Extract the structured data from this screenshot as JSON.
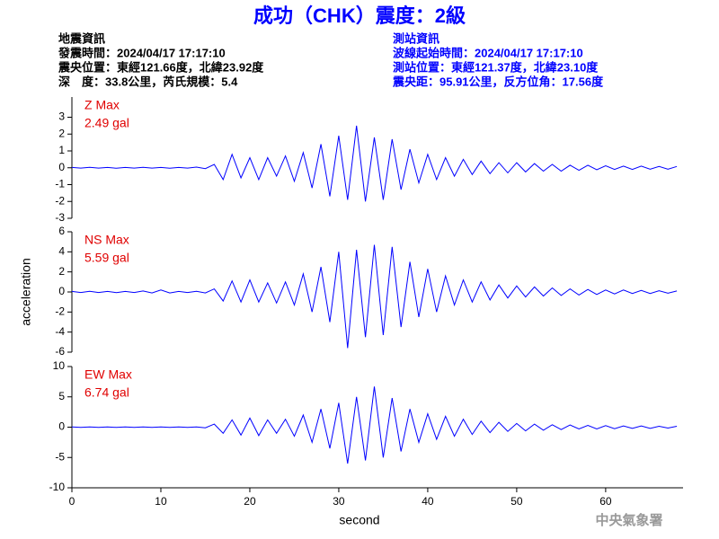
{
  "title": "成功（CHK）震度：2級",
  "left_info": [
    "地震資訊",
    "發震時間：2024/04/17 17:17:10",
    "震央位置：東經121.66度，北緯23.92度",
    "深　度：33.8公里，芮氏規模：5.4"
  ],
  "right_info": [
    "測站資訊",
    "波線起始時間：2024/04/17 17:17:10",
    "測站位置：東經121.37度，北緯23.10度",
    "震央距：95.91公里，反方位角：17.56度"
  ],
  "y_label": "acceleration",
  "footer": "中央氣象署",
  "chart_data": [
    {
      "type": "line",
      "label": "Z Max",
      "max_label": "2.49 gal",
      "color": "#0000ff",
      "x": [
        0,
        1,
        2,
        3,
        4,
        5,
        6,
        7,
        8,
        9,
        10,
        11,
        12,
        13,
        14,
        15,
        16,
        17,
        18,
        19,
        20,
        21,
        22,
        23,
        24,
        25,
        26,
        27,
        28,
        29,
        30,
        31,
        32,
        33,
        34,
        35,
        36,
        37,
        38,
        39,
        40,
        41,
        42,
        43,
        44,
        45,
        46,
        47,
        48,
        49,
        50,
        51,
        52,
        53,
        54,
        55,
        56,
        57,
        58,
        59,
        60,
        61,
        62,
        63,
        64,
        65,
        66,
        67,
        68
      ],
      "values": [
        0.02,
        -0.02,
        0.03,
        -0.02,
        0.02,
        -0.03,
        0.02,
        -0.02,
        0.03,
        -0.02,
        0.02,
        -0.03,
        0.02,
        -0.02,
        0.04,
        -0.05,
        0.2,
        -0.7,
        0.8,
        -0.6,
        0.6,
        -0.7,
        0.6,
        -0.5,
        0.7,
        -0.8,
        0.9,
        -1.2,
        1.4,
        -1.7,
        1.9,
        -1.9,
        2.5,
        -2.0,
        1.8,
        -1.9,
        1.7,
        -1.3,
        1.1,
        -0.9,
        0.8,
        -0.7,
        0.6,
        -0.5,
        0.5,
        -0.4,
        0.4,
        -0.35,
        0.3,
        -0.3,
        0.3,
        -0.25,
        0.25,
        -0.2,
        0.2,
        -0.2,
        0.15,
        -0.15,
        0.15,
        -0.12,
        0.12,
        -0.1,
        0.1,
        -0.1,
        0.1,
        -0.08,
        0.08,
        -0.08,
        0.08
      ],
      "xlim": [
        0,
        68.7
      ],
      "ylim": [
        -3,
        4.2
      ],
      "yticks": [
        -3,
        -2,
        -1,
        0,
        1,
        2,
        3
      ]
    },
    {
      "type": "line",
      "label": "NS Max",
      "max_label": "5.59 gal",
      "color": "#0000ff",
      "x": [
        0,
        1,
        2,
        3,
        4,
        5,
        6,
        7,
        8,
        9,
        10,
        11,
        12,
        13,
        14,
        15,
        16,
        17,
        18,
        19,
        20,
        21,
        22,
        23,
        24,
        25,
        26,
        27,
        28,
        29,
        30,
        31,
        32,
        33,
        34,
        35,
        36,
        37,
        38,
        39,
        40,
        41,
        42,
        43,
        44,
        45,
        46,
        47,
        48,
        49,
        50,
        51,
        52,
        53,
        54,
        55,
        56,
        57,
        58,
        59,
        60,
        61,
        62,
        63,
        64,
        65,
        66,
        67,
        68
      ],
      "values": [
        0.05,
        -0.05,
        0.06,
        -0.05,
        0.05,
        -0.06,
        0.05,
        -0.05,
        0.1,
        -0.1,
        0.2,
        -0.1,
        0.05,
        -0.05,
        0.06,
        -0.1,
        0.3,
        -0.9,
        1.1,
        -1.0,
        1.2,
        -1.0,
        0.9,
        -1.1,
        1.0,
        -1.3,
        1.8,
        -2.0,
        2.5,
        -3.0,
        4.0,
        -5.6,
        4.2,
        -4.5,
        4.7,
        -4.3,
        4.5,
        -3.5,
        3.0,
        -2.5,
        2.3,
        -2.0,
        1.6,
        -1.3,
        1.2,
        -1.0,
        1.0,
        -0.8,
        0.7,
        -0.6,
        0.6,
        -0.5,
        0.5,
        -0.4,
        0.4,
        -0.35,
        0.3,
        -0.3,
        0.25,
        -0.25,
        0.2,
        -0.2,
        0.2,
        -0.15,
        0.15,
        -0.15,
        0.12,
        -0.12,
        0.1
      ],
      "xlim": [
        0,
        68.7
      ],
      "ylim": [
        -6,
        6
      ],
      "yticks": [
        -6,
        -4,
        -2,
        0,
        2,
        4,
        6
      ]
    },
    {
      "type": "line",
      "label": "EW Max",
      "max_label": "6.74 gal",
      "color": "#0000ff",
      "xlabel": "second",
      "x": [
        0,
        1,
        2,
        3,
        4,
        5,
        6,
        7,
        8,
        9,
        10,
        11,
        12,
        13,
        14,
        15,
        16,
        17,
        18,
        19,
        20,
        21,
        22,
        23,
        24,
        25,
        26,
        27,
        28,
        29,
        30,
        31,
        32,
        33,
        34,
        35,
        36,
        37,
        38,
        39,
        40,
        41,
        42,
        43,
        44,
        45,
        46,
        47,
        48,
        49,
        50,
        51,
        52,
        53,
        54,
        55,
        56,
        57,
        58,
        59,
        60,
        61,
        62,
        63,
        64,
        65,
        66,
        67,
        68
      ],
      "values": [
        0.05,
        -0.05,
        0.05,
        -0.05,
        0.05,
        -0.05,
        0.05,
        -0.05,
        0.05,
        -0.05,
        0.05,
        -0.05,
        0.05,
        -0.05,
        0.05,
        -0.1,
        0.5,
        -1.0,
        1.2,
        -1.3,
        1.5,
        -1.4,
        1.2,
        -1.0,
        1.3,
        -1.5,
        2.0,
        -2.5,
        3.0,
        -3.5,
        4.0,
        -6.0,
        5.0,
        -5.5,
        6.7,
        -5.0,
        4.8,
        -4.0,
        3.0,
        -2.5,
        2.2,
        -2.0,
        1.8,
        -1.5,
        1.3,
        -1.2,
        1.0,
        -0.9,
        0.8,
        -0.7,
        0.6,
        -0.6,
        0.5,
        -0.5,
        0.4,
        -0.4,
        0.35,
        -0.3,
        0.3,
        -0.3,
        0.25,
        -0.25,
        0.2,
        -0.2,
        0.2,
        -0.2,
        0.15,
        -0.15,
        0.15
      ],
      "xlim": [
        0,
        68.7
      ],
      "ylim": [
        -10,
        10
      ],
      "yticks": [
        -10,
        -5,
        0,
        5,
        10
      ],
      "xticks": [
        0,
        10,
        20,
        30,
        40,
        50,
        60
      ]
    }
  ]
}
